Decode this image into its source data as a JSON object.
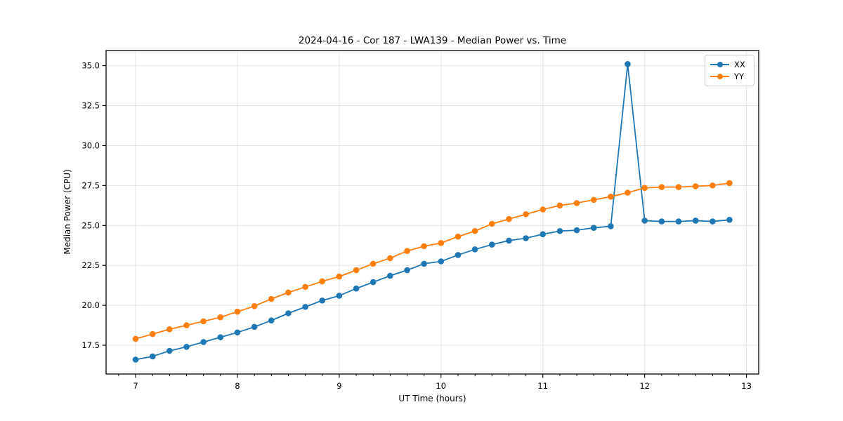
{
  "chart_data": {
    "type": "line",
    "title": "2024-04-16 - Cor 187 - LWA139 - Median Power vs. Time",
    "xlabel": "UT Time (hours)",
    "ylabel": "Median Power (CPU)",
    "xlim": [
      6.71,
      13.12
    ],
    "ylim": [
      15.7,
      35.95
    ],
    "grid": "major-both",
    "legend_position": "upper right",
    "xticks": {
      "values": [
        7,
        8,
        9,
        10,
        11,
        12,
        13
      ],
      "labels": [
        "7",
        "8",
        "9",
        "10",
        "11",
        "12",
        "13"
      ]
    },
    "x_minor_tick_step": 0.16667,
    "yticks": {
      "values": [
        17.5,
        20.0,
        22.5,
        25.0,
        27.5,
        30.0,
        32.5,
        35.0
      ],
      "labels": [
        "17.5",
        "20.0",
        "22.5",
        "25.0",
        "27.5",
        "30.0",
        "32.5",
        "35.0"
      ]
    },
    "x": [
      7.0,
      7.167,
      7.333,
      7.5,
      7.667,
      7.833,
      8.0,
      8.167,
      8.333,
      8.5,
      8.667,
      8.833,
      9.0,
      9.167,
      9.333,
      9.5,
      9.667,
      9.833,
      10.0,
      10.167,
      10.333,
      10.5,
      10.667,
      10.833,
      11.0,
      11.167,
      11.333,
      11.5,
      11.667,
      11.833,
      12.0,
      12.167,
      12.333,
      12.5,
      12.667,
      12.833
    ],
    "series": [
      {
        "name": "XX",
        "color": "#1f77b4",
        "values": [
          16.6,
          16.8,
          17.15,
          17.4,
          17.7,
          18.0,
          18.3,
          18.65,
          19.05,
          19.5,
          19.9,
          20.3,
          20.6,
          21.05,
          21.45,
          21.85,
          22.2,
          22.6,
          22.75,
          23.15,
          23.5,
          23.8,
          24.05,
          24.2,
          24.45,
          24.65,
          24.7,
          24.85,
          24.95,
          35.1,
          25.3,
          25.25,
          25.25,
          25.3,
          25.25,
          25.35
        ]
      },
      {
        "name": "YY",
        "color": "#ff7f0e",
        "values": [
          17.9,
          18.2,
          18.5,
          18.75,
          19.0,
          19.25,
          19.6,
          19.95,
          20.4,
          20.8,
          21.15,
          21.5,
          21.8,
          22.2,
          22.6,
          22.95,
          23.4,
          23.7,
          23.9,
          24.3,
          24.65,
          25.1,
          25.4,
          25.7,
          26.0,
          26.25,
          26.4,
          26.6,
          26.8,
          27.05,
          27.35,
          27.4,
          27.4,
          27.45,
          27.5,
          27.65
        ]
      }
    ]
  }
}
